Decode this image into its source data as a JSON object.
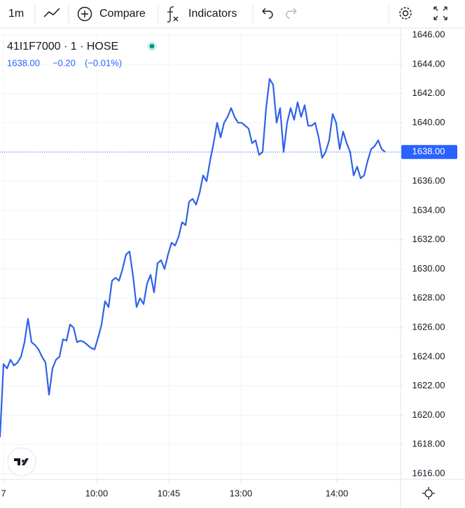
{
  "toolbar": {
    "interval": "1m",
    "compare": "Compare",
    "indicators": "Indicators"
  },
  "chart_data": {
    "type": "line",
    "title": "41I1F7000 · 1 · HOSE",
    "last_price": {
      "value": 1638,
      "label": "1638.00"
    },
    "change": {
      "value": -0.2,
      "label": "−0.20"
    },
    "change_percent": {
      "value": -0.01,
      "label": "(−0.01%)"
    },
    "x": [
      0,
      1,
      2,
      3,
      4,
      5,
      6,
      7,
      8,
      9,
      10,
      11,
      12,
      13,
      14,
      15,
      16,
      17,
      18,
      19,
      20,
      21,
      22,
      23,
      24,
      25,
      26,
      27,
      28,
      29,
      30,
      31,
      32,
      33,
      34,
      35,
      36,
      37,
      38,
      39,
      40,
      41,
      42,
      43,
      44,
      45,
      46,
      47,
      48,
      49,
      50,
      51,
      52,
      53,
      54,
      55,
      56,
      57,
      58,
      59,
      60,
      61,
      62,
      63,
      64,
      65,
      66,
      67,
      68,
      69,
      70,
      71,
      72,
      73,
      74,
      75,
      76,
      77,
      78,
      79,
      80,
      81,
      82,
      83,
      84,
      85,
      86,
      87,
      88,
      89,
      90,
      91,
      92,
      93,
      94,
      95,
      96,
      97,
      98,
      99,
      100,
      101,
      102,
      103,
      104,
      105,
      106,
      107,
      108,
      109,
      110
    ],
    "series": [
      {
        "name": "41I1F7000",
        "color": "#2f62e8",
        "values": [
          1618.5,
          1623.5,
          1623.2,
          1623.8,
          1623.4,
          1623.6,
          1624,
          1625,
          1626.6,
          1625,
          1624.8,
          1624.5,
          1624,
          1623.6,
          1621.4,
          1623.2,
          1623.8,
          1624,
          1625.2,
          1625.1,
          1626.2,
          1626,
          1625,
          1625.1,
          1625,
          1624.8,
          1624.6,
          1624.5,
          1625.3,
          1626.2,
          1627.8,
          1627.4,
          1629.2,
          1629.4,
          1629.2,
          1630,
          1631,
          1631.2,
          1629.5,
          1627.4,
          1628,
          1627.6,
          1629,
          1629.6,
          1628.4,
          1630.4,
          1630.6,
          1630,
          1631,
          1631.8,
          1631.6,
          1632.2,
          1633.2,
          1633,
          1634.6,
          1634.8,
          1634.4,
          1635.2,
          1636.4,
          1636,
          1637.4,
          1638.6,
          1640,
          1639,
          1640,
          1640.4,
          1641,
          1640.4,
          1640,
          1640,
          1639.8,
          1639.6,
          1638.6,
          1638.8,
          1637.8,
          1638,
          1641,
          1643,
          1642.6,
          1640,
          1641,
          1638,
          1640,
          1641,
          1640.2,
          1641.4,
          1640.4,
          1641.2,
          1639.8,
          1639.8,
          1640,
          1639,
          1637.6,
          1638,
          1638.8,
          1640.6,
          1640,
          1638.2,
          1639.4,
          1638.6,
          1638,
          1636.4,
          1637,
          1636.2,
          1636.4,
          1637.4,
          1638.2,
          1638.4,
          1638.8,
          1638.2,
          1638
        ]
      }
    ],
    "xlim": [
      0,
      114.4
    ],
    "xticks": [
      {
        "value": 1,
        "label": "7"
      },
      {
        "value": 27.6,
        "label": "10:00"
      },
      {
        "value": 48.2,
        "label": "10:45"
      },
      {
        "value": 68.8,
        "label": "13:00"
      },
      {
        "value": 96.2,
        "label": "14:00"
      }
    ],
    "ylim": [
      1615.62,
      1646.24
    ],
    "yticks": [
      {
        "value": 1616,
        "label": "1616.00"
      },
      {
        "value": 1618,
        "label": "1618.00"
      },
      {
        "value": 1620,
        "label": "1620.00"
      },
      {
        "value": 1622,
        "label": "1622.00"
      },
      {
        "value": 1624,
        "label": "1624.00"
      },
      {
        "value": 1626,
        "label": "1626.00"
      },
      {
        "value": 1628,
        "label": "1628.00"
      },
      {
        "value": 1630,
        "label": "1630.00"
      },
      {
        "value": 1632,
        "label": "1632.00"
      },
      {
        "value": 1634,
        "label": "1634.00"
      },
      {
        "value": 1636,
        "label": "1636.00"
      },
      {
        "value": 1638,
        "label": "1638.00"
      },
      {
        "value": 1640,
        "label": "1640.00"
      },
      {
        "value": 1642,
        "label": "1642.00"
      },
      {
        "value": 1644,
        "label": "1644.00"
      },
      {
        "value": 1646,
        "label": "1646.00"
      }
    ],
    "grid": true
  }
}
